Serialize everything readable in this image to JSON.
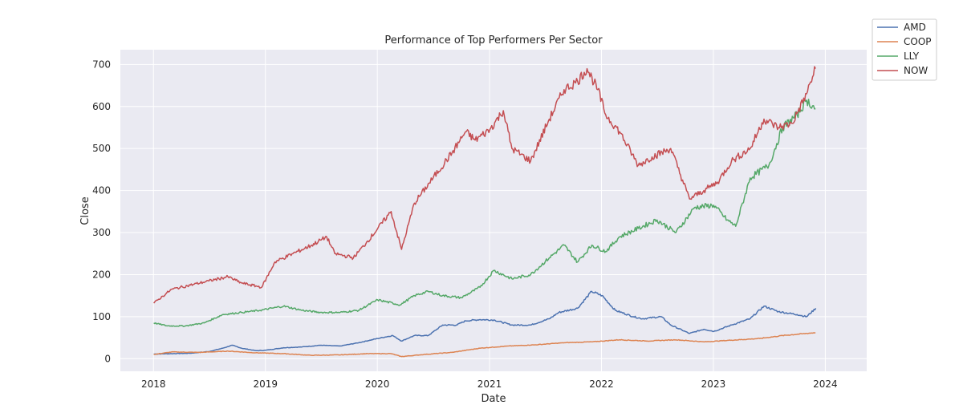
{
  "chart_data": {
    "type": "line",
    "title": "Performance of Top Performers Per Sector",
    "xlabel": "Date",
    "ylabel": "Close",
    "xlim": [
      "2017-09-15",
      "2024-05-15"
    ],
    "ylim": [
      -30,
      735
    ],
    "x_ticks": [
      "2018",
      "2019",
      "2020",
      "2021",
      "2022",
      "2023",
      "2024"
    ],
    "y_ticks": [
      0,
      100,
      200,
      300,
      400,
      500,
      600,
      700
    ],
    "grid": true,
    "legend": "outside-top-right",
    "series": [
      {
        "name": "AMD",
        "color": "#4c72b0",
        "points": [
          [
            "2018-01-02",
            11
          ],
          [
            "2018-03-01",
            12
          ],
          [
            "2018-05-01",
            13
          ],
          [
            "2018-07-01",
            17
          ],
          [
            "2018-08-15",
            25
          ],
          [
            "2018-09-15",
            32
          ],
          [
            "2018-10-15",
            25
          ],
          [
            "2018-12-01",
            19
          ],
          [
            "2019-01-01",
            20
          ],
          [
            "2019-03-01",
            26
          ],
          [
            "2019-05-01",
            28
          ],
          [
            "2019-07-01",
            32
          ],
          [
            "2019-09-01",
            30
          ],
          [
            "2019-11-01",
            38
          ],
          [
            "2020-01-02",
            48
          ],
          [
            "2020-02-20",
            55
          ],
          [
            "2020-03-20",
            42
          ],
          [
            "2020-05-01",
            55
          ],
          [
            "2020-06-15",
            55
          ],
          [
            "2020-08-01",
            80
          ],
          [
            "2020-09-15",
            80
          ],
          [
            "2020-10-15",
            90
          ],
          [
            "2020-12-01",
            93
          ],
          [
            "2021-01-15",
            92
          ],
          [
            "2021-03-15",
            80
          ],
          [
            "2021-05-15",
            80
          ],
          [
            "2021-07-15",
            95
          ],
          [
            "2021-08-15",
            110
          ],
          [
            "2021-10-15",
            120
          ],
          [
            "2021-11-30",
            160
          ],
          [
            "2022-01-03",
            150
          ],
          [
            "2022-02-15",
            115
          ],
          [
            "2022-04-15",
            100
          ],
          [
            "2022-05-15",
            95
          ],
          [
            "2022-07-15",
            100
          ],
          [
            "2022-08-15",
            80
          ],
          [
            "2022-10-15",
            60
          ],
          [
            "2022-12-01",
            70
          ],
          [
            "2023-01-03",
            65
          ],
          [
            "2023-03-01",
            80
          ],
          [
            "2023-05-01",
            95
          ],
          [
            "2023-06-15",
            125
          ],
          [
            "2023-08-01",
            112
          ],
          [
            "2023-10-01",
            105
          ],
          [
            "2023-11-01",
            100
          ],
          [
            "2023-12-01",
            120
          ]
        ]
      },
      {
        "name": "COOP",
        "color": "#dd8452",
        "points": [
          [
            "2018-01-02",
            10
          ],
          [
            "2018-03-01",
            16
          ],
          [
            "2018-06-01",
            15
          ],
          [
            "2018-09-01",
            18
          ],
          [
            "2018-12-01",
            14
          ],
          [
            "2019-03-01",
            12
          ],
          [
            "2019-06-01",
            8
          ],
          [
            "2019-09-01",
            9
          ],
          [
            "2019-12-01",
            12
          ],
          [
            "2020-02-15",
            12
          ],
          [
            "2020-03-20",
            5
          ],
          [
            "2020-06-01",
            10
          ],
          [
            "2020-09-01",
            15
          ],
          [
            "2020-12-01",
            25
          ],
          [
            "2021-03-01",
            30
          ],
          [
            "2021-06-01",
            33
          ],
          [
            "2021-09-01",
            38
          ],
          [
            "2021-12-01",
            40
          ],
          [
            "2022-03-01",
            45
          ],
          [
            "2022-06-01",
            42
          ],
          [
            "2022-09-01",
            45
          ],
          [
            "2022-12-01",
            40
          ],
          [
            "2023-03-01",
            44
          ],
          [
            "2023-06-01",
            48
          ],
          [
            "2023-08-15",
            55
          ],
          [
            "2023-11-30",
            62
          ]
        ]
      },
      {
        "name": "LLY",
        "color": "#55a868",
        "points": [
          [
            "2018-01-02",
            85
          ],
          [
            "2018-02-15",
            78
          ],
          [
            "2018-04-15",
            78
          ],
          [
            "2018-06-15",
            85
          ],
          [
            "2018-08-15",
            105
          ],
          [
            "2018-10-15",
            110
          ],
          [
            "2018-12-15",
            115
          ],
          [
            "2019-03-01",
            125
          ],
          [
            "2019-05-01",
            115
          ],
          [
            "2019-07-01",
            110
          ],
          [
            "2019-09-01",
            110
          ],
          [
            "2019-11-01",
            115
          ],
          [
            "2020-01-02",
            140
          ],
          [
            "2020-03-15",
            128
          ],
          [
            "2020-05-01",
            150
          ],
          [
            "2020-06-15",
            160
          ],
          [
            "2020-08-01",
            150
          ],
          [
            "2020-10-01",
            145
          ],
          [
            "2020-12-01",
            170
          ],
          [
            "2021-01-15",
            210
          ],
          [
            "2021-03-15",
            190
          ],
          [
            "2021-05-15",
            200
          ],
          [
            "2021-07-15",
            240
          ],
          [
            "2021-09-01",
            270
          ],
          [
            "2021-10-15",
            230
          ],
          [
            "2021-12-01",
            270
          ],
          [
            "2022-01-15",
            255
          ],
          [
            "2022-03-01",
            290
          ],
          [
            "2022-05-01",
            310
          ],
          [
            "2022-07-01",
            330
          ],
          [
            "2022-09-01",
            300
          ],
          [
            "2022-11-01",
            360
          ],
          [
            "2023-01-02",
            365
          ],
          [
            "2023-02-15",
            330
          ],
          [
            "2023-03-15",
            315
          ],
          [
            "2023-05-01",
            430
          ],
          [
            "2023-07-01",
            460
          ],
          [
            "2023-08-15",
            550
          ],
          [
            "2023-10-01",
            580
          ],
          [
            "2023-11-01",
            615
          ],
          [
            "2023-11-30",
            595
          ]
        ]
      },
      {
        "name": "NOW",
        "color": "#c44e52",
        "points": [
          [
            "2018-01-02",
            132
          ],
          [
            "2018-03-01",
            165
          ],
          [
            "2018-05-01",
            175
          ],
          [
            "2018-07-01",
            185
          ],
          [
            "2018-09-01",
            195
          ],
          [
            "2018-10-15",
            180
          ],
          [
            "2018-12-20",
            170
          ],
          [
            "2019-02-01",
            230
          ],
          [
            "2019-04-01",
            250
          ],
          [
            "2019-06-01",
            270
          ],
          [
            "2019-07-20",
            290
          ],
          [
            "2019-08-15",
            250
          ],
          [
            "2019-10-15",
            240
          ],
          [
            "2019-12-01",
            280
          ],
          [
            "2020-02-15",
            350
          ],
          [
            "2020-03-20",
            260
          ],
          [
            "2020-05-01",
            370
          ],
          [
            "2020-07-01",
            430
          ],
          [
            "2020-09-01",
            490
          ],
          [
            "2020-10-15",
            540
          ],
          [
            "2020-11-15",
            520
          ],
          [
            "2021-01-02",
            545
          ],
          [
            "2021-02-15",
            590
          ],
          [
            "2021-03-15",
            500
          ],
          [
            "2021-05-15",
            470
          ],
          [
            "2021-07-15",
            570
          ],
          [
            "2021-09-01",
            640
          ],
          [
            "2021-10-15",
            660
          ],
          [
            "2021-11-15",
            690
          ],
          [
            "2021-12-20",
            640
          ],
          [
            "2022-01-15",
            580
          ],
          [
            "2022-03-01",
            540
          ],
          [
            "2022-05-01",
            460
          ],
          [
            "2022-06-15",
            480
          ],
          [
            "2022-08-15",
            500
          ],
          [
            "2022-10-15",
            380
          ],
          [
            "2022-12-01",
            400
          ],
          [
            "2023-01-15",
            420
          ],
          [
            "2023-03-01",
            470
          ],
          [
            "2023-05-01",
            500
          ],
          [
            "2023-06-15",
            570
          ],
          [
            "2023-08-01",
            550
          ],
          [
            "2023-09-15",
            560
          ],
          [
            "2023-11-01",
            630
          ],
          [
            "2023-11-30",
            690
          ]
        ]
      }
    ]
  }
}
